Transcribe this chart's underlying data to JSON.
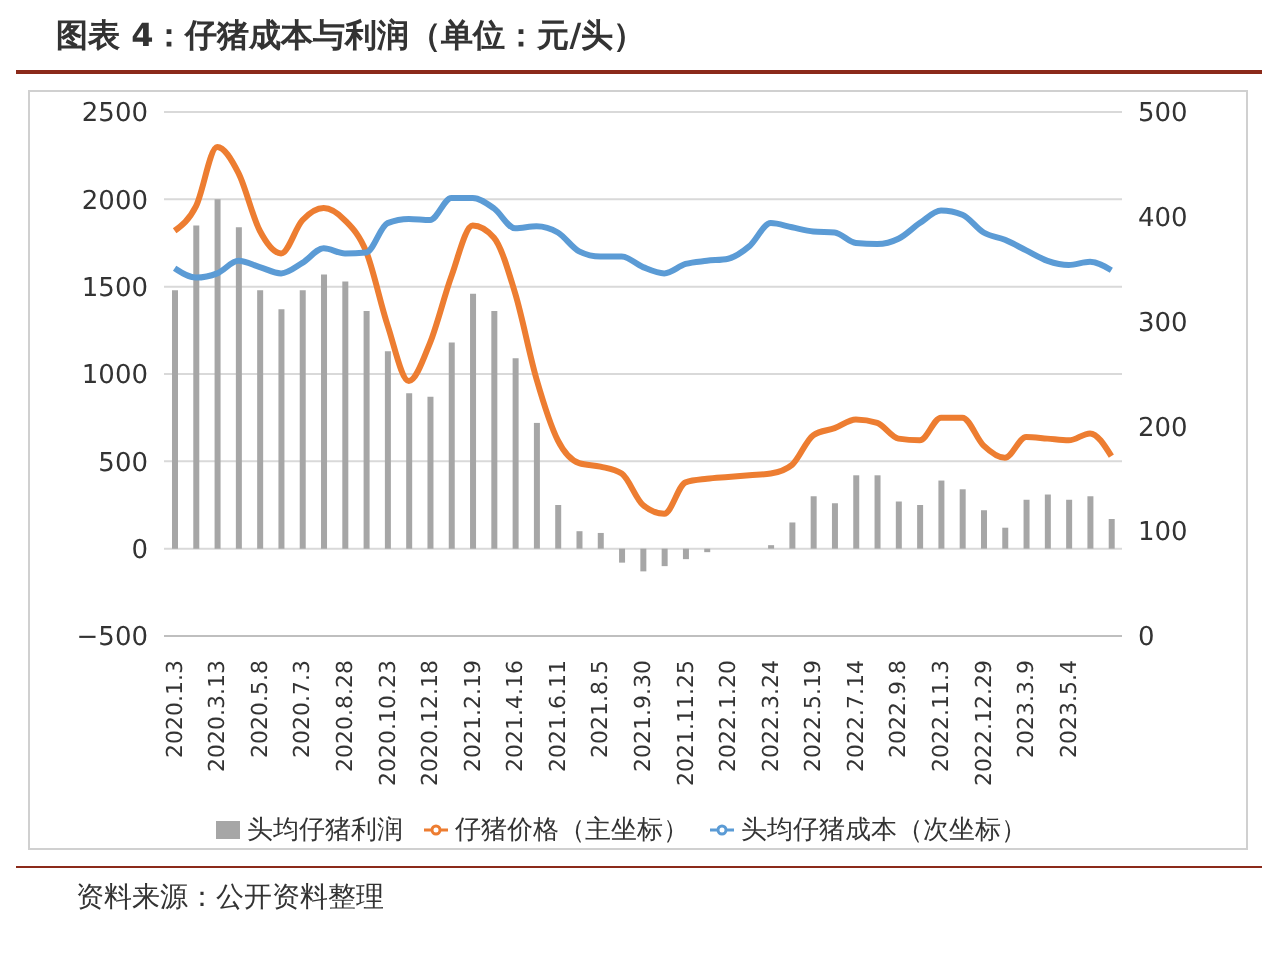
{
  "chart_data": {
    "type": "bar",
    "title": "图表 4：仔猪成本与利润（单位：元/头）",
    "categories": [
      "2020.1.3",
      null,
      "2020.3.13",
      null,
      "2020.5.8",
      null,
      "2020.7.3",
      null,
      "2020.8.28",
      null,
      "2020.10.23",
      null,
      "2020.12.18",
      null,
      "2021.2.19",
      null,
      "2021.4.16",
      null,
      "2021.6.11",
      null,
      "2021.8.5",
      null,
      "2021.9.30",
      null,
      "2021.11.25",
      null,
      "2022.1.20",
      null,
      "2022.3.24",
      null,
      "2022.5.19",
      null,
      "2022.7.14",
      null,
      "2022.9.8",
      null,
      "2022.11.3",
      null,
      "2022.12.29",
      null,
      "2023.3.9",
      null,
      "2023.5.4",
      null,
      null
    ],
    "series": [
      {
        "name": "头均仔猪利润",
        "color": "#a6a6a6",
        "values": [
          1480,
          1850,
          2000,
          1840,
          1480,
          1370,
          1480,
          1570,
          1530,
          1360,
          1130,
          890,
          870,
          1180,
          1460,
          1360,
          1090,
          720,
          250,
          100,
          90,
          -80,
          -130,
          -100,
          -60,
          -20,
          0,
          null,
          20,
          150,
          300,
          260,
          420,
          420,
          270,
          250,
          390,
          340,
          220,
          120,
          280,
          310,
          280,
          300,
          170
        ]
      },
      {
        "name": "仔猪价格（主坐标）",
        "type": "line",
        "color": "#ed7d31",
        "values": [
          1820,
          1960,
          2300,
          2150,
          1820,
          1690,
          1880,
          1950,
          1880,
          1700,
          1280,
          960,
          1180,
          1560,
          1850,
          1780,
          1460,
          970,
          620,
          490,
          470,
          430,
          250,
          200,
          380,
          400,
          410,
          420,
          430,
          480,
          650,
          690,
          740,
          720,
          630,
          620,
          750,
          750,
          590,
          520,
          640,
          630,
          620,
          660,
          530
        ]
      },
      {
        "name": "头均仔猪成本（次坐标）",
        "type": "line",
        "axis": "y2",
        "color": "#5b9bd5",
        "values": [
          351,
          342,
          346,
          358,
          352,
          346,
          356,
          370,
          365,
          366,
          394,
          398,
          397,
          418,
          418,
          408,
          389,
          391,
          385,
          367,
          362,
          362,
          352,
          346,
          355,
          358,
          360,
          372,
          394,
          390,
          386,
          385,
          375,
          374,
          379,
          394,
          406,
          402,
          385,
          378,
          368,
          358,
          354,
          357,
          349
        ]
      }
    ],
    "ylim": [
      -500,
      2500
    ],
    "yticks": [
      {
        "value": -500,
        "label": "−500"
      },
      0,
      500,
      1000,
      1500,
      2000,
      2500
    ],
    "y2lim": [
      0,
      500
    ],
    "y2ticks": [
      0,
      100,
      200,
      300,
      400,
      500
    ],
    "grid": "y",
    "legend": "bottom",
    "marker": "none",
    "annotations": [
      "资料来源：公开资料整理"
    ]
  }
}
